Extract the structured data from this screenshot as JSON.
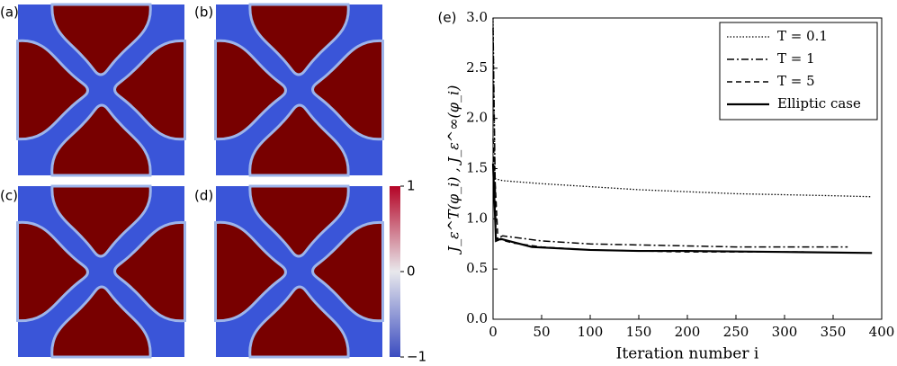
{
  "panel_labels": [
    "(a)",
    "(b)",
    "(c)",
    "(d)"
  ],
  "colorbar": {
    "clim": [
      -1,
      1
    ],
    "ticks": [
      1,
      0,
      {
        "value": -1,
        "label": "−1"
      }
    ]
  },
  "chart_data": {
    "type": "line",
    "panel_label": "(e)",
    "xlabel": "Iteration number i",
    "ylabel": "J_ε^T(φ_i) ,  J_ε^∞(φ_i)",
    "xlim": [
      0,
      400
    ],
    "ylim": [
      0,
      3
    ],
    "xticks": [
      0,
      50,
      100,
      150,
      200,
      250,
      300,
      350,
      400
    ],
    "yticks": [
      {
        "value": 0,
        "label": "0.0"
      },
      0.5,
      {
        "value": 1,
        "label": "1.0"
      },
      1.5,
      {
        "value": 2,
        "label": "2.0"
      },
      2.5,
      {
        "value": 3,
        "label": "3.0"
      }
    ],
    "legend": "upper right",
    "series": [
      {
        "name": "T = 0.1",
        "color": "#000000",
        "style": "dotted",
        "x": [
          0,
          2,
          10,
          50,
          100,
          150,
          200,
          250,
          300,
          350,
          390
        ],
        "values": [
          3.0,
          1.4,
          1.38,
          1.35,
          1.32,
          1.29,
          1.27,
          1.25,
          1.24,
          1.23,
          1.22
        ]
      },
      {
        "name": "T = 1",
        "color": "#000000",
        "style": "dashdot",
        "x": [
          0,
          3,
          10,
          50,
          100,
          150,
          200,
          250,
          300,
          365
        ],
        "values": [
          2.9,
          0.8,
          0.83,
          0.78,
          0.75,
          0.74,
          0.73,
          0.72,
          0.72,
          0.72
        ]
      },
      {
        "name": "T = 5",
        "color": "#000000",
        "style": "dashed",
        "x": [
          0,
          5,
          20,
          50,
          100,
          150,
          200,
          250,
          320
        ],
        "values": [
          1.8,
          0.8,
          0.76,
          0.72,
          0.69,
          0.68,
          0.67,
          0.67,
          0.67
        ]
      },
      {
        "name": "Elliptic case",
        "color": "#000000",
        "style": "solid",
        "x": [
          0,
          3,
          8,
          20,
          40,
          100,
          150,
          200,
          300,
          390
        ],
        "values": [
          1.55,
          0.78,
          0.8,
          0.77,
          0.72,
          0.69,
          0.68,
          0.68,
          0.67,
          0.66
        ]
      }
    ]
  }
}
